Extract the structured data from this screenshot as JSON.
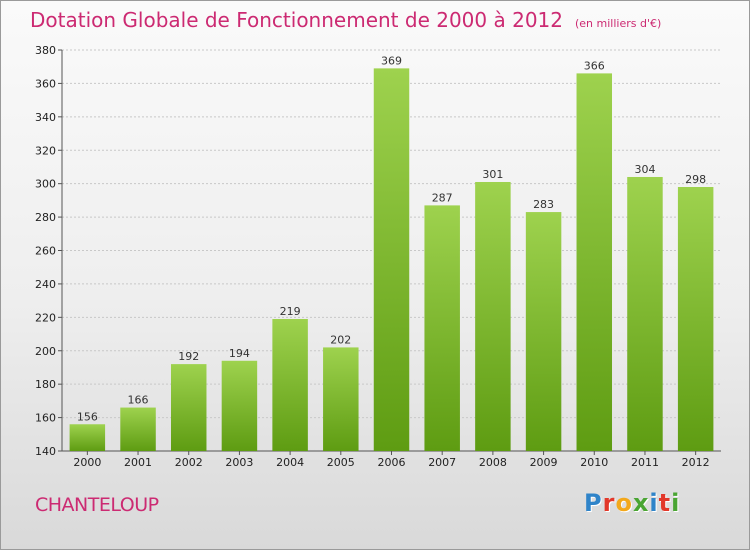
{
  "header": {
    "title": "Dotation Globale de Fonctionnement de 2000 à 2012",
    "unit": "(en milliers d'€)"
  },
  "footer": {
    "place": "CHANTELOUP",
    "brand": "Proxiti"
  },
  "colors": {
    "title": "#cc2a72",
    "bar_light": "#9ed24e",
    "bar_dark": "#5e9c12",
    "background_top": "#fafafa",
    "background_bottom": "#d9d9d9"
  },
  "chart_data": {
    "type": "bar",
    "title": "Dotation Globale de Fonctionnement de 2000 à 2012",
    "subtitle": "(en milliers d'€)",
    "xlabel": "",
    "ylabel": "",
    "categories": [
      "2000",
      "2001",
      "2002",
      "2003",
      "2004",
      "2005",
      "2006",
      "2007",
      "2008",
      "2009",
      "2010",
      "2011",
      "2012"
    ],
    "values": [
      156,
      166,
      192,
      194,
      219,
      202,
      369,
      287,
      301,
      283,
      366,
      304,
      298
    ],
    "ylim": [
      140,
      380
    ],
    "yticks": [
      140,
      160,
      180,
      200,
      220,
      240,
      260,
      280,
      300,
      320,
      340,
      360,
      380
    ],
    "grid": true,
    "legend": "none",
    "data_labels": true
  }
}
